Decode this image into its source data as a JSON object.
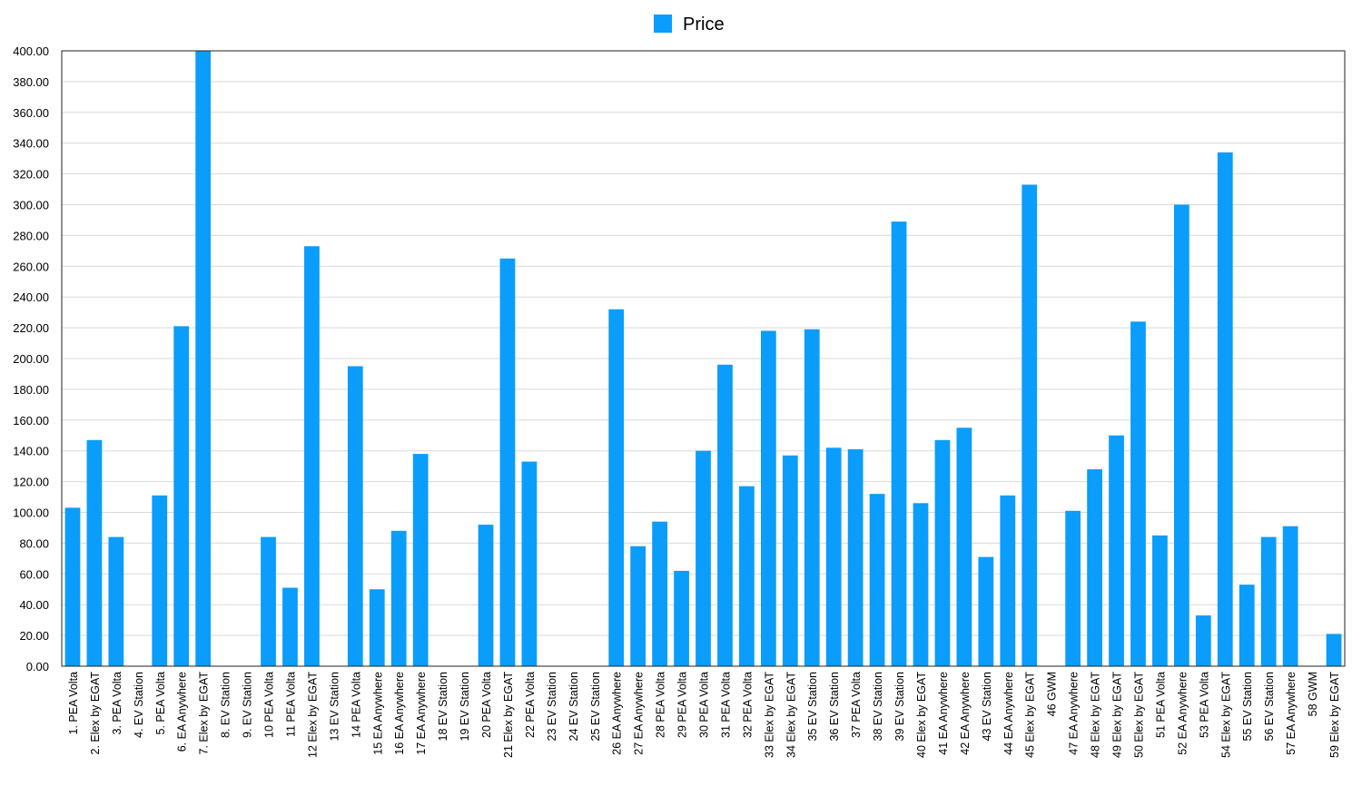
{
  "chart_data": {
    "type": "bar",
    "title": "",
    "xlabel": "",
    "ylabel": "",
    "ylim": [
      0,
      400
    ],
    "yticks": [
      "0.00",
      "20.00",
      "40.00",
      "60.00",
      "80.00",
      "100.00",
      "120.00",
      "140.00",
      "160.00",
      "180.00",
      "200.00",
      "220.00",
      "240.00",
      "260.00",
      "280.00",
      "300.00",
      "320.00",
      "340.00",
      "360.00",
      "380.00",
      "400.00"
    ],
    "grid": true,
    "legend_position": "top-center",
    "bar_color": "#0a9dfb",
    "categories": [
      "1. PEA Volta",
      "2. Elex by EGAT",
      "3. PEA Volta",
      "4. EV Station",
      "5. PEA Volta",
      "6. EA Anywhere",
      "7. Elex by EGAT",
      "8. EV Station",
      "9. EV Station",
      "10 PEA Volta",
      "11 PEA Volta",
      "12 Elex by EGAT",
      "13 EV Station",
      "14 PEA Volta",
      "15 EA Anywhere",
      "16 EA Anywhere",
      "17 EA Anywhere",
      "18 EV Station",
      "19 EV Station",
      "20 PEA Volta",
      "21 Elex by EGAT",
      "22 PEA Volta",
      "23 EV Station",
      "24 EV Station",
      "25 EV Station",
      "26 EA Anywhere",
      "27 EA Anywhere",
      "28 PEA Volta",
      "29 PEA Volta",
      "30 PEA Volta",
      "31 PEA Volta",
      "32 PEA Volta",
      "33 Elex by EGAT",
      "34 Elex by EGAT",
      "35 EV Station",
      "36 EV Station",
      "37 PEA Volta",
      "38 EV Station",
      "39 EV Station",
      "40 Elex by EGAT",
      "41 EA Anywhere",
      "42 EA Anywhere",
      "43 EV Station",
      "44 EA Anywhere",
      "45 Elex by EGAT",
      "46 GWM",
      "47 EA Anywhere",
      "48 Elex by EGAT",
      "49 Elex by EGAT",
      "50 Elex by EGAT",
      "51 PEA Volta",
      "52 EA Anywhere",
      "53 PEA Volta",
      "54 Elex by EGAT",
      "55 EV Station",
      "56 EV Station",
      "57 EA Anywhere",
      "58 GWM",
      "59 Elex by EGAT"
    ],
    "series": [
      {
        "name": "Price",
        "values": [
          103,
          147,
          84,
          0,
          111,
          221,
          400,
          0,
          0,
          84,
          51,
          273,
          0,
          195,
          50,
          88,
          138,
          0,
          0,
          92,
          265,
          133,
          0,
          0,
          0,
          232,
          78,
          94,
          62,
          140,
          196,
          117,
          218,
          137,
          219,
          142,
          141,
          112,
          289,
          106,
          147,
          155,
          71,
          111,
          313,
          0,
          101,
          128,
          150,
          224,
          85,
          300,
          33,
          334,
          53,
          84,
          91,
          0,
          21
        ]
      }
    ]
  }
}
